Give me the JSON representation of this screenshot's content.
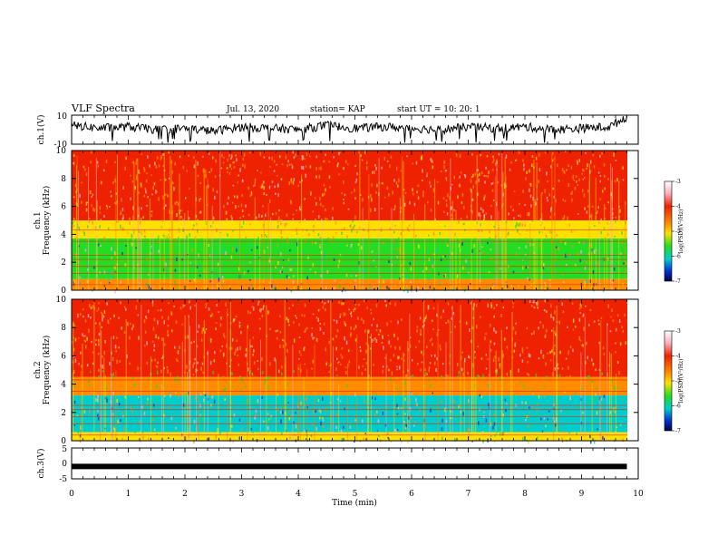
{
  "header": {
    "title": "VLF Spectra",
    "date": "Jul. 13, 2020",
    "station": "station= KAP",
    "start": "start UT =  10: 20: 1"
  },
  "colors": {
    "red": "#ee2200",
    "orange": "#ff8c00",
    "yellow": "#ffe000",
    "green": "#22dd22",
    "cyan": "#00cccc",
    "blue": "#0030d0",
    "navy": "#000040",
    "pink": "#ffb0c0",
    "white": "#ffffff"
  },
  "chart_data": [
    {
      "type": "line",
      "ylabel": "ch.1(V)",
      "ylim": [
        -10,
        10
      ],
      "yticks": [
        "10",
        "-10"
      ],
      "xlim": [
        0,
        10
      ],
      "x": [
        0,
        0.5,
        1,
        1.5,
        2,
        2.5,
        3,
        3.5,
        4,
        4.5,
        5,
        5.5,
        6,
        6.5,
        7,
        7.5,
        8,
        8.5,
        9,
        9.5,
        9.8
      ],
      "y": [
        3,
        1,
        2,
        0,
        1,
        -1,
        2,
        1,
        0,
        3,
        1,
        2,
        1,
        0,
        2,
        1,
        2,
        0,
        1,
        2,
        9
      ]
    },
    {
      "type": "heatmap",
      "ylabel": "ch.1\nFrequency (kHz)",
      "xlim": [
        0,
        10
      ],
      "ylim": [
        0,
        10
      ],
      "yticks": [
        "0",
        "2",
        "4",
        "6",
        "8",
        "10"
      ],
      "colorbar": {
        "label": "log(PSD)(V²/Hz)",
        "ticks": [
          "-3",
          "-4",
          "-5",
          "-6",
          "-7"
        ],
        "range": [
          -7,
          -3
        ]
      },
      "bands": [
        {
          "from": 5,
          "to": 10,
          "level": -3.3
        },
        {
          "from": 3.7,
          "to": 5,
          "level": -4.6
        },
        {
          "from": 2.2,
          "to": 3.7,
          "level": -5.1
        },
        {
          "from": 0.8,
          "to": 2.2,
          "level": -4.9
        },
        {
          "from": 0,
          "to": 0.8,
          "level": -4.2
        }
      ]
    },
    {
      "type": "heatmap",
      "ylabel": "ch.2\nFrequency (kHz)",
      "xlim": [
        0,
        10
      ],
      "ylim": [
        0,
        10
      ],
      "yticks": [
        "0",
        "2",
        "4",
        "6",
        "8",
        "10"
      ],
      "colorbar": {
        "label": "log(PSD)(V²/Hz)",
        "ticks": [
          "-3",
          "-4",
          "-5",
          "-6",
          "-7"
        ],
        "range": [
          -7,
          -3
        ]
      },
      "bands": [
        {
          "from": 4.5,
          "to": 10,
          "level": -3.3
        },
        {
          "from": 3.2,
          "to": 4.5,
          "level": -4.2
        },
        {
          "from": 0.6,
          "to": 3.2,
          "level": -5.2
        },
        {
          "from": 0,
          "to": 0.6,
          "level": -4.4
        }
      ]
    },
    {
      "type": "line",
      "ylabel": "ch.3(V)",
      "ylim": [
        -5,
        5
      ],
      "yticks": [
        "5",
        "0",
        "-5"
      ],
      "xlim": [
        0,
        10
      ],
      "x": [
        0,
        9.8
      ],
      "y": [
        -1,
        -1
      ]
    }
  ],
  "xaxis": {
    "label": "Time (min)",
    "ticks": [
      "0",
      "1",
      "2",
      "3",
      "4",
      "5",
      "6",
      "7",
      "8",
      "9",
      "10"
    ]
  }
}
